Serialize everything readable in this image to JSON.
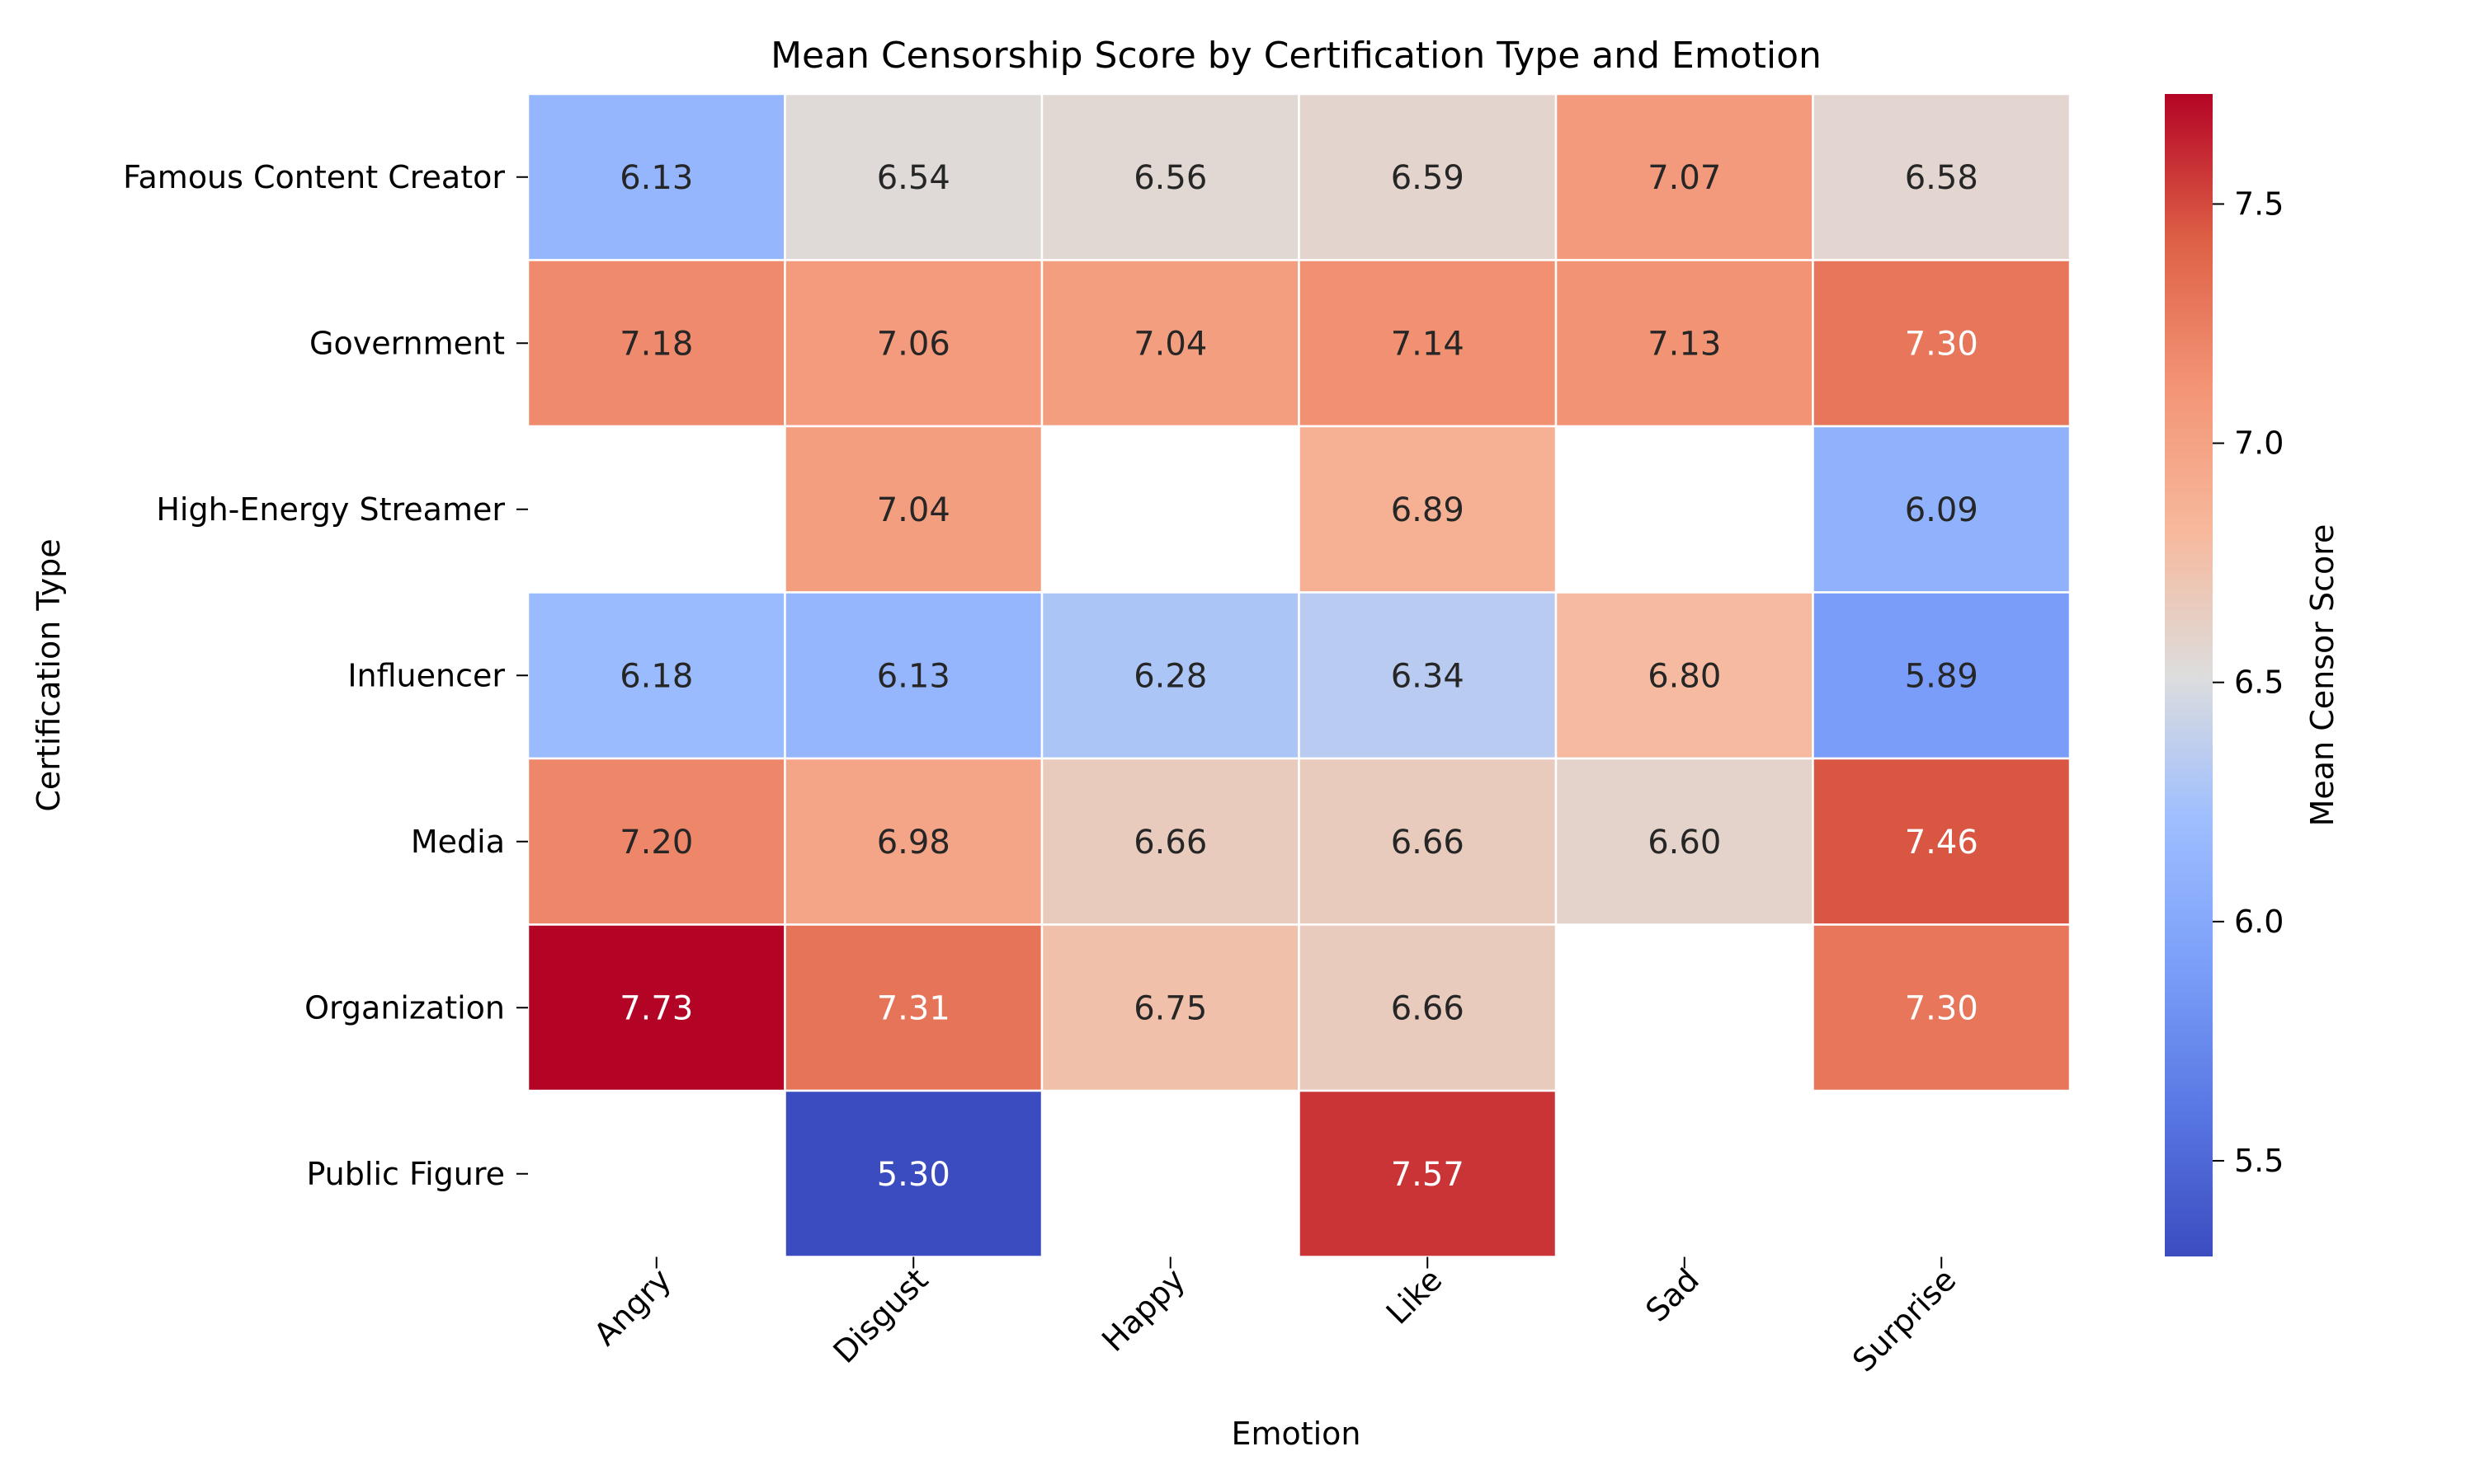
{
  "chart_data": {
    "type": "heatmap",
    "title": "Mean Censorship Score by Certification Type and Emotion",
    "xlabel": "Emotion",
    "ylabel": "Certification Type",
    "x_categories": [
      "Angry",
      "Disgust",
      "Happy",
      "Like",
      "Sad",
      "Surprise"
    ],
    "y_categories": [
      "Famous Content Creator",
      "Government",
      "High-Energy Streamer",
      "Influencer",
      "Media",
      "Organization",
      "Public Figure"
    ],
    "values": [
      [
        6.13,
        6.54,
        6.56,
        6.59,
        7.07,
        6.58
      ],
      [
        7.18,
        7.06,
        7.04,
        7.14,
        7.13,
        7.3
      ],
      [
        null,
        7.04,
        null,
        6.89,
        null,
        6.09
      ],
      [
        6.18,
        6.13,
        6.28,
        6.34,
        6.8,
        5.89
      ],
      [
        7.2,
        6.98,
        6.66,
        6.66,
        6.6,
        7.46
      ],
      [
        7.73,
        7.31,
        6.75,
        6.66,
        null,
        7.3
      ],
      [
        null,
        5.3,
        null,
        7.57,
        null,
        null
      ]
    ],
    "colormap": "coolwarm",
    "colorbar": {
      "label": "Mean Censor Score",
      "min": 5.3,
      "max": 7.73,
      "ticks": [
        "5.5",
        "6.0",
        "6.5",
        "7.0",
        "7.5"
      ]
    },
    "annotation_format": "2 decimals",
    "grid": false
  }
}
